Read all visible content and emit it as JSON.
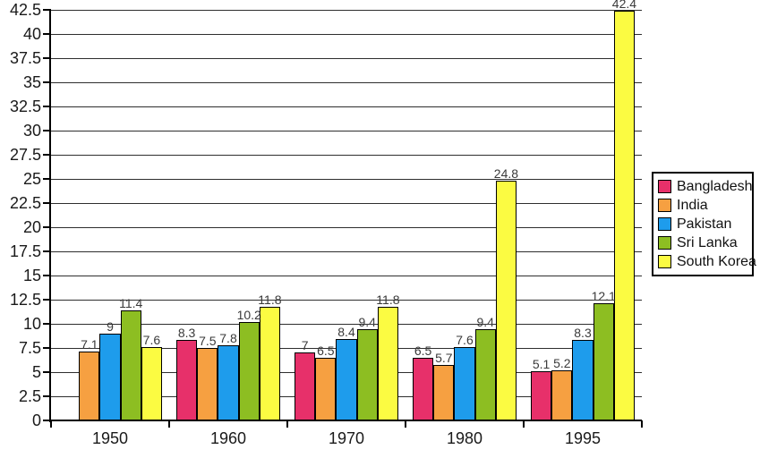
{
  "chart_data": {
    "type": "bar",
    "title": "",
    "xlabel": "",
    "ylabel": "",
    "categories": [
      "1950",
      "1960",
      "1970",
      "1980",
      "1995"
    ],
    "series": [
      {
        "name": "Bangladesh",
        "color": "#E7306A",
        "values": [
          null,
          8.3,
          7,
          6.5,
          5.1
        ]
      },
      {
        "name": "India",
        "color": "#F6A041",
        "values": [
          7.1,
          7.5,
          6.5,
          5.7,
          5.2
        ]
      },
      {
        "name": "Pakistan",
        "color": "#1E9CEC",
        "values": [
          9,
          7.8,
          8.4,
          7.6,
          8.3
        ]
      },
      {
        "name": "Sri Lanka",
        "color": "#8DBE22",
        "values": [
          11.4,
          10.2,
          9.4,
          9.4,
          12.1
        ]
      },
      {
        "name": "South Korea",
        "color": "#FBFB42",
        "values": [
          7.6,
          11.8,
          11.8,
          24.8,
          42.4
        ]
      }
    ],
    "ylim": [
      0,
      42.5
    ],
    "ytick_step": 2.5,
    "grid": true,
    "bar_value_labels": true,
    "legend_position": "right"
  },
  "colors": {
    "background": "#FFFFFF",
    "axis": "#000000",
    "gridline": "#2E2E2E",
    "bar_border": "#000000",
    "data_label": "#3A3A3A",
    "tick_label": "#1A1A1A",
    "legend_border": "#000000",
    "legend_background": "#FFFFFF"
  }
}
